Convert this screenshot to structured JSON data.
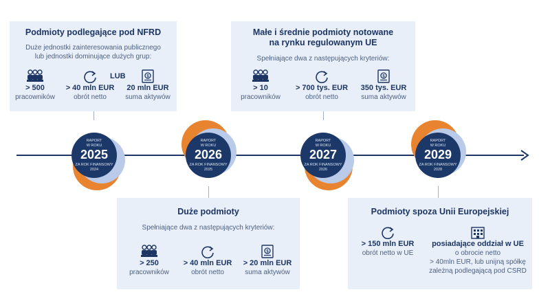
{
  "nfrd": {
    "title": "Podmioty podlegające pod NFRD",
    "subtitle_1": "Duże jednostki zainteresowania publicznego",
    "subtitle_2": "lub jednostki dominujące dużych grup:",
    "or_label": "LUB",
    "criteria": [
      {
        "icon": "employees-icon",
        "value": "> 500",
        "label": "pracowników"
      },
      {
        "icon": "turnover-icon",
        "value": "> 40 mln EUR",
        "label": "obrót netto"
      },
      {
        "icon": "assets-icon",
        "value": "20 mln EUR",
        "label": "suma aktywów"
      }
    ]
  },
  "sme": {
    "title_1": "Małe i średnie podmioty notowane",
    "title_2": "na rynku regulowanym UE",
    "subtitle": "Spełniające dwa z następujących kryteriów:",
    "criteria": [
      {
        "icon": "employees-icon",
        "value": "> 10",
        "label": "pracowników"
      },
      {
        "icon": "turnover-icon",
        "value": "> 700 tys. EUR",
        "label": "obrót netto"
      },
      {
        "icon": "assets-icon",
        "value": "350 tys. EUR",
        "label": "suma aktywów"
      }
    ]
  },
  "large": {
    "title": "Duże podmioty",
    "subtitle": "Spełniające dwa z następujących kryteriów:",
    "criteria": [
      {
        "icon": "employees-icon",
        "value": "> 250",
        "label": "pracowników"
      },
      {
        "icon": "turnover-icon",
        "value": "> 40 mln EUR",
        "label": "obrót netto"
      },
      {
        "icon": "assets-icon",
        "value": "> 20 mln EUR",
        "label": "suma aktywów"
      }
    ]
  },
  "non_eu": {
    "title": "Podmioty spoza Unii Europejskiej",
    "criteria_1": {
      "icon": "turnover-icon",
      "value": "> 150 mln EUR",
      "label": "obrót netto w UE"
    },
    "criteria_2": {
      "icon": "building-icon",
      "value": "posiadające oddział w UE",
      "line_1": "o obrocie netto",
      "line_2": "> 40mln EUR, lub unijną spółkę",
      "line_3": "zależną podlegającą pod CSRD"
    }
  },
  "milestones": [
    {
      "top": "RAPORT",
      "top2": "W ROKU",
      "year": "2025",
      "bottom": "ZA ROK FINANSOWY",
      "fy": "2024"
    },
    {
      "top": "RAPORT",
      "top2": "W ROKU",
      "year": "2026",
      "bottom": "ZA ROK FINANSOWY",
      "fy": "2025"
    },
    {
      "top": "RAPORT",
      "top2": "W ROKU",
      "year": "2027",
      "bottom": "ZA ROK FINANSOWY",
      "fy": "2026"
    },
    {
      "top": "RAPORT",
      "top2": "W ROKU",
      "year": "2029",
      "bottom": "ZA ROK FINANSOWY",
      "fy": "2028"
    }
  ],
  "colors": {
    "navy": "#1c3868",
    "orange": "#e8842f",
    "light_blue": "#b9cbe8",
    "box_bg": "#e9eff8"
  }
}
